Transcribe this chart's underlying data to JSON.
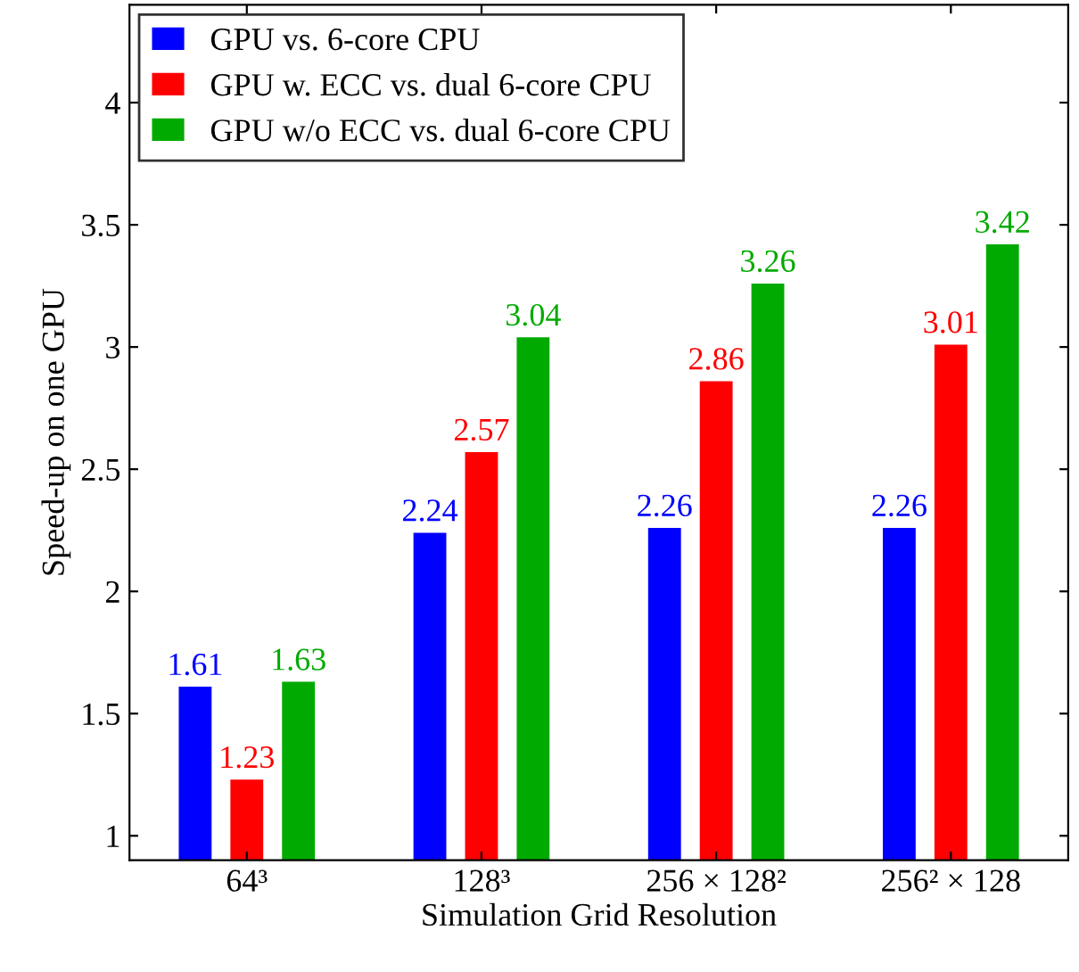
{
  "chart_data": {
    "type": "bar",
    "xlabel": "Simulation Grid Resolution",
    "ylabel": "Speed-up on one GPU",
    "categories": [
      "64³",
      "128³",
      "256 × 128²",
      "256² × 128"
    ],
    "series": [
      {
        "name": "GPU vs. 6-core CPU",
        "color": "#0000ff",
        "values": [
          1.61,
          2.24,
          2.26,
          2.26
        ]
      },
      {
        "name": "GPU w. ECC vs. dual 6-core CPU",
        "color": "#ff0000",
        "values": [
          1.23,
          2.57,
          2.86,
          3.01
        ]
      },
      {
        "name": "GPU w/o ECC vs. dual 6-core CPU",
        "color": "#00aa00",
        "values": [
          1.63,
          3.04,
          3.26,
          3.42
        ]
      }
    ],
    "ylim": [
      0.9,
      4.4
    ],
    "yticks": [
      1,
      1.5,
      2,
      2.5,
      3,
      3.5,
      4
    ],
    "data_labels": true,
    "legend": "top left",
    "grid": false
  }
}
